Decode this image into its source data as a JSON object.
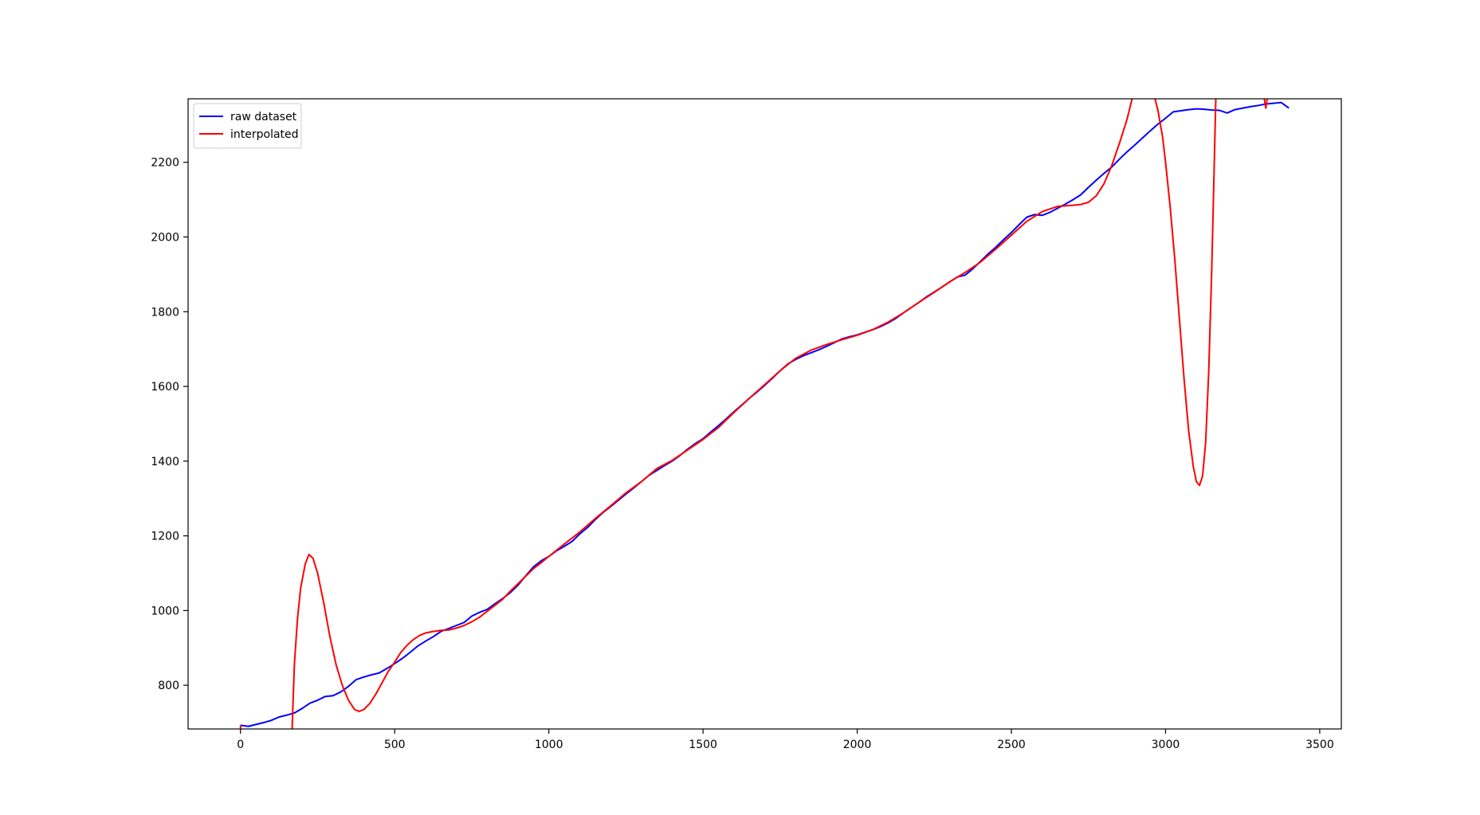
{
  "chart_data": {
    "type": "line",
    "title": "",
    "xlabel": "",
    "ylabel": "",
    "xlim": [
      -170,
      3570
    ],
    "ylim": [
      683,
      2370
    ],
    "xticks": [
      0,
      500,
      1000,
      1500,
      2000,
      2500,
      3000,
      3500
    ],
    "yticks": [
      800,
      1000,
      1200,
      1400,
      1600,
      1800,
      2000,
      2200
    ],
    "grid": false,
    "legend_position": "upper-left",
    "series": [
      {
        "name": "raw dataset",
        "color": "#0000ff",
        "points": [
          [
            0,
            693
          ],
          [
            25,
            690
          ],
          [
            50,
            695
          ],
          [
            75,
            700
          ],
          [
            100,
            706
          ],
          [
            125,
            715
          ],
          [
            150,
            720
          ],
          [
            175,
            726
          ],
          [
            200,
            738
          ],
          [
            225,
            752
          ],
          [
            250,
            760
          ],
          [
            275,
            770
          ],
          [
            300,
            772
          ],
          [
            325,
            782
          ],
          [
            350,
            797
          ],
          [
            375,
            815
          ],
          [
            400,
            822
          ],
          [
            425,
            828
          ],
          [
            450,
            833
          ],
          [
            475,
            845
          ],
          [
            500,
            858
          ],
          [
            525,
            872
          ],
          [
            550,
            888
          ],
          [
            575,
            905
          ],
          [
            600,
            918
          ],
          [
            625,
            930
          ],
          [
            650,
            944
          ],
          [
            675,
            952
          ],
          [
            700,
            960
          ],
          [
            725,
            968
          ],
          [
            750,
            985
          ],
          [
            775,
            995
          ],
          [
            800,
            1003
          ],
          [
            825,
            1018
          ],
          [
            850,
            1032
          ],
          [
            875,
            1048
          ],
          [
            900,
            1068
          ],
          [
            925,
            1093
          ],
          [
            950,
            1117
          ],
          [
            975,
            1133
          ],
          [
            1000,
            1145
          ],
          [
            1025,
            1160
          ],
          [
            1050,
            1172
          ],
          [
            1075,
            1185
          ],
          [
            1100,
            1205
          ],
          [
            1125,
            1222
          ],
          [
            1150,
            1243
          ],
          [
            1175,
            1262
          ],
          [
            1200,
            1278
          ],
          [
            1225,
            1295
          ],
          [
            1250,
            1312
          ],
          [
            1275,
            1328
          ],
          [
            1300,
            1345
          ],
          [
            1325,
            1362
          ],
          [
            1350,
            1375
          ],
          [
            1375,
            1388
          ],
          [
            1400,
            1400
          ],
          [
            1425,
            1415
          ],
          [
            1450,
            1432
          ],
          [
            1475,
            1447
          ],
          [
            1500,
            1460
          ],
          [
            1525,
            1478
          ],
          [
            1550,
            1495
          ],
          [
            1575,
            1513
          ],
          [
            1600,
            1532
          ],
          [
            1625,
            1550
          ],
          [
            1650,
            1568
          ],
          [
            1675,
            1585
          ],
          [
            1700,
            1603
          ],
          [
            1725,
            1622
          ],
          [
            1750,
            1642
          ],
          [
            1775,
            1660
          ],
          [
            1800,
            1672
          ],
          [
            1825,
            1682
          ],
          [
            1850,
            1690
          ],
          [
            1875,
            1698
          ],
          [
            1900,
            1707
          ],
          [
            1925,
            1717
          ],
          [
            1950,
            1727
          ],
          [
            1975,
            1733
          ],
          [
            2000,
            1738
          ],
          [
            2025,
            1745
          ],
          [
            2050,
            1752
          ],
          [
            2075,
            1760
          ],
          [
            2100,
            1770
          ],
          [
            2125,
            1782
          ],
          [
            2150,
            1797
          ],
          [
            2175,
            1811
          ],
          [
            2200,
            1825
          ],
          [
            2225,
            1840
          ],
          [
            2250,
            1853
          ],
          [
            2275,
            1866
          ],
          [
            2300,
            1880
          ],
          [
            2325,
            1893
          ],
          [
            2350,
            1898
          ],
          [
            2375,
            1915
          ],
          [
            2400,
            1935
          ],
          [
            2425,
            1955
          ],
          [
            2450,
            1973
          ],
          [
            2475,
            1993
          ],
          [
            2500,
            2012
          ],
          [
            2525,
            2033
          ],
          [
            2550,
            2053
          ],
          [
            2575,
            2060
          ],
          [
            2600,
            2058
          ],
          [
            2625,
            2066
          ],
          [
            2650,
            2077
          ],
          [
            2675,
            2088
          ],
          [
            2700,
            2100
          ],
          [
            2725,
            2113
          ],
          [
            2750,
            2133
          ],
          [
            2775,
            2152
          ],
          [
            2800,
            2170
          ],
          [
            2825,
            2187
          ],
          [
            2850,
            2208
          ],
          [
            2875,
            2228
          ],
          [
            2900,
            2246
          ],
          [
            2925,
            2265
          ],
          [
            2950,
            2284
          ],
          [
            2975,
            2302
          ],
          [
            3000,
            2318
          ],
          [
            3025,
            2335
          ],
          [
            3050,
            2338
          ],
          [
            3075,
            2341
          ],
          [
            3100,
            2343
          ],
          [
            3125,
            2342
          ],
          [
            3150,
            2340
          ],
          [
            3175,
            2339
          ],
          [
            3200,
            2332
          ],
          [
            3225,
            2341
          ],
          [
            3250,
            2345
          ],
          [
            3275,
            2349
          ],
          [
            3300,
            2352
          ],
          [
            3325,
            2356
          ],
          [
            3350,
            2358
          ],
          [
            3375,
            2360
          ],
          [
            3400,
            2345
          ]
        ]
      },
      {
        "name": "interpolated",
        "color": "#ff0000",
        "points": [
          [
            0,
            693
          ],
          [
            1,
            560
          ],
          [
            165,
            580
          ],
          [
            168,
            700
          ],
          [
            175,
            860
          ],
          [
            185,
            980
          ],
          [
            195,
            1060
          ],
          [
            210,
            1125
          ],
          [
            222,
            1150
          ],
          [
            235,
            1140
          ],
          [
            250,
            1100
          ],
          [
            270,
            1020
          ],
          [
            290,
            930
          ],
          [
            310,
            855
          ],
          [
            330,
            800
          ],
          [
            350,
            760
          ],
          [
            370,
            735
          ],
          [
            385,
            730
          ],
          [
            400,
            735
          ],
          [
            420,
            752
          ],
          [
            440,
            778
          ],
          [
            460,
            808
          ],
          [
            480,
            838
          ],
          [
            500,
            862
          ],
          [
            520,
            888
          ],
          [
            540,
            907
          ],
          [
            560,
            922
          ],
          [
            580,
            933
          ],
          [
            600,
            940
          ],
          [
            625,
            944
          ],
          [
            650,
            947
          ],
          [
            675,
            948
          ],
          [
            700,
            953
          ],
          [
            725,
            960
          ],
          [
            750,
            970
          ],
          [
            775,
            982
          ],
          [
            800,
            998
          ],
          [
            825,
            1014
          ],
          [
            850,
            1030
          ],
          [
            875,
            1052
          ],
          [
            900,
            1072
          ],
          [
            925,
            1092
          ],
          [
            950,
            1112
          ],
          [
            975,
            1128
          ],
          [
            1000,
            1145
          ],
          [
            1050,
            1178
          ],
          [
            1100,
            1210
          ],
          [
            1150,
            1246
          ],
          [
            1200,
            1280
          ],
          [
            1250,
            1315
          ],
          [
            1300,
            1345
          ],
          [
            1350,
            1380
          ],
          [
            1400,
            1402
          ],
          [
            1450,
            1430
          ],
          [
            1500,
            1458
          ],
          [
            1550,
            1490
          ],
          [
            1600,
            1530
          ],
          [
            1650,
            1568
          ],
          [
            1700,
            1605
          ],
          [
            1750,
            1642
          ],
          [
            1800,
            1675
          ],
          [
            1850,
            1697
          ],
          [
            1900,
            1712
          ],
          [
            1950,
            1725
          ],
          [
            2000,
            1737
          ],
          [
            2050,
            1752
          ],
          [
            2100,
            1772
          ],
          [
            2150,
            1797
          ],
          [
            2200,
            1825
          ],
          [
            2250,
            1852
          ],
          [
            2300,
            1880
          ],
          [
            2350,
            1905
          ],
          [
            2400,
            1933
          ],
          [
            2450,
            1968
          ],
          [
            2500,
            2005
          ],
          [
            2550,
            2042
          ],
          [
            2600,
            2068
          ],
          [
            2650,
            2082
          ],
          [
            2700,
            2085
          ],
          [
            2725,
            2087
          ],
          [
            2750,
            2093
          ],
          [
            2775,
            2110
          ],
          [
            2800,
            2142
          ],
          [
            2825,
            2190
          ],
          [
            2850,
            2250
          ],
          [
            2875,
            2315
          ],
          [
            2892,
            2372
          ],
          [
            2965,
            2372
          ],
          [
            2975,
            2340
          ],
          [
            2990,
            2270
          ],
          [
            3000,
            2200
          ],
          [
            3015,
            2080
          ],
          [
            3030,
            1940
          ],
          [
            3045,
            1780
          ],
          [
            3060,
            1620
          ],
          [
            3075,
            1480
          ],
          [
            3090,
            1385
          ],
          [
            3100,
            1345
          ],
          [
            3110,
            1335
          ],
          [
            3120,
            1360
          ],
          [
            3130,
            1450
          ],
          [
            3140,
            1640
          ],
          [
            3150,
            1920
          ],
          [
            3158,
            2200
          ],
          [
            3163,
            2372
          ],
          [
            3320,
            2372
          ],
          [
            3325,
            2345
          ],
          [
            3330,
            2372
          ]
        ]
      }
    ]
  }
}
